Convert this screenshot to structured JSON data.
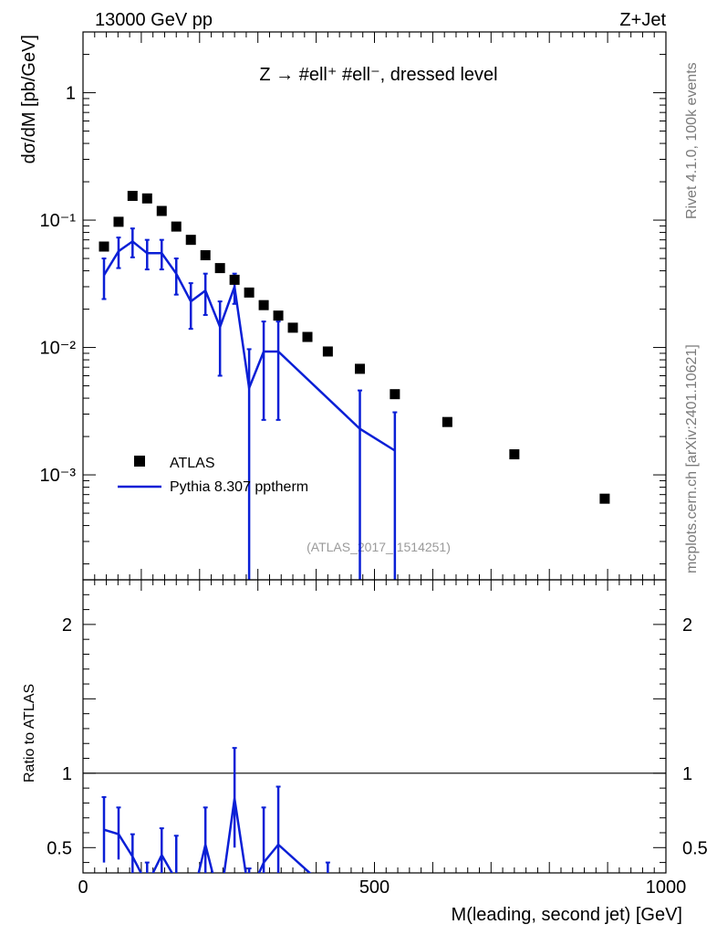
{
  "header": {
    "left": "13000 GeV pp",
    "right": "Z+Jet"
  },
  "side_text": {
    "rivet": "Rivet 4.1.0,  100k events",
    "source": "mcplots.cern.ch [arXiv:2401.10621]"
  },
  "chart_data": [
    {
      "type": "scatter",
      "title": "Z → #ell⁺ #ell⁻, dressed level",
      "ylabel": "dσ/dM [pb/GeV]",
      "yscale": "log",
      "ylim": [
        0.00015,
        3.0
      ],
      "xlim": [
        0,
        1000
      ],
      "y_ticks": [
        {
          "value": 1,
          "label": "1"
        },
        {
          "value": 0.1,
          "label": "10⁻¹"
        },
        {
          "value": 0.01,
          "label": "10⁻²"
        },
        {
          "value": 0.001,
          "label": "10⁻³"
        }
      ],
      "watermark": "(ATLAS_2017_I1514251)",
      "legend": {
        "position": "bottom-left",
        "entries": [
          "ATLAS",
          "Pythia 8.307 pptherm"
        ]
      },
      "series": [
        {
          "name": "ATLAS",
          "style": "markers",
          "color": "#000000",
          "x": [
            36,
            61,
            85,
            110,
            135,
            160,
            185,
            210,
            235,
            260,
            285,
            310,
            335,
            360,
            385,
            420,
            475,
            535,
            625,
            740,
            895
          ],
          "values": [
            0.062,
            0.097,
            0.155,
            0.148,
            0.118,
            0.089,
            0.07,
            0.053,
            0.042,
            0.034,
            0.027,
            0.0215,
            0.0178,
            0.0143,
            0.0121,
            0.0093,
            0.0068,
            0.0043,
            0.0026,
            0.00145,
            0.00065
          ]
        },
        {
          "name": "Pythia 8.307 pptherm",
          "style": "line",
          "color": "#0a1fd6",
          "x": [
            36,
            61,
            85,
            110,
            135,
            160,
            185,
            210,
            235,
            260,
            285,
            310,
            335,
            475,
            535
          ],
          "values": [
            0.037,
            0.057,
            0.068,
            0.055,
            0.055,
            0.038,
            0.023,
            0.028,
            0.0145,
            0.03,
            0.0048,
            0.0093,
            0.0093,
            0.0023,
            0.00155
          ],
          "err_low": [
            0.024,
            0.042,
            0.051,
            0.041,
            0.041,
            0.026,
            0.014,
            0.018,
            0.006,
            0.022,
            0.0001,
            0.0027,
            0.0027,
            0.0001,
            0.0001
          ],
          "err_high": [
            0.05,
            0.073,
            0.086,
            0.07,
            0.07,
            0.05,
            0.032,
            0.038,
            0.023,
            0.038,
            0.0097,
            0.016,
            0.016,
            0.0046,
            0.0031
          ]
        }
      ]
    },
    {
      "type": "line",
      "ylabel": "Ratio to ATLAS",
      "xlabel": "M(leading, second jet) [GeV]",
      "xlim": [
        0,
        1000
      ],
      "ylim": [
        0.33,
        2.3
      ],
      "x_ticks": [
        0,
        500,
        1000
      ],
      "y_ticks": [
        0.5,
        1,
        2
      ],
      "x_tick_labels": [
        "0",
        "500",
        "1000"
      ],
      "y_tick_labels": [
        "0.5",
        "1",
        "2"
      ],
      "reference": 1,
      "series": [
        {
          "name": "Pythia 8.307 pptherm / ATLAS",
          "color": "#0a1fd6",
          "x": [
            36,
            61,
            85,
            110,
            135,
            160,
            185,
            210,
            235,
            260,
            285,
            310,
            335,
            420
          ],
          "values": [
            0.62,
            0.59,
            0.44,
            0.25,
            0.45,
            0.28,
            0.11,
            0.52,
            0.13,
            0.83,
            0.18,
            0.4,
            0.52,
            0.22
          ],
          "err_low": [
            0.4,
            0.42,
            0.28,
            0.1,
            0.32,
            0.1,
            0.0,
            0.33,
            0.0,
            0.5,
            0.0,
            0.12,
            0.14,
            0.0
          ],
          "err_high": [
            0.84,
            0.77,
            0.59,
            0.4,
            0.63,
            0.58,
            0.25,
            0.77,
            0.28,
            1.17,
            0.36,
            0.77,
            0.91,
            0.4
          ]
        }
      ]
    }
  ]
}
